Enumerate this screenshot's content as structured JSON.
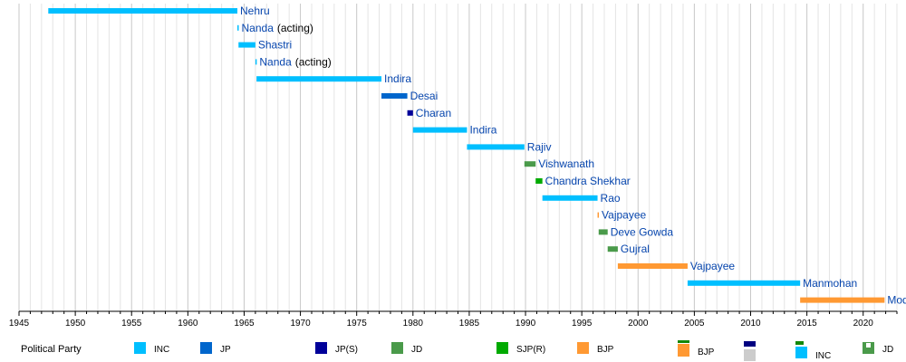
{
  "chart_data": {
    "type": "timeline",
    "title": "",
    "xlabel": "",
    "ylabel": "",
    "xlim": [
      1945,
      2023
    ],
    "x_ticks": [
      1945,
      1950,
      1955,
      1960,
      1965,
      1970,
      1975,
      1980,
      1985,
      1990,
      1995,
      2000,
      2005,
      2010,
      2015,
      2020
    ],
    "minor_grid_step": 1,
    "grid": true,
    "bars": [
      {
        "name": "Nehru",
        "note": "",
        "start": 1947.6,
        "end": 1964.4,
        "party": "INC"
      },
      {
        "name": "Nanda",
        "note": "(acting)",
        "start": 1964.4,
        "end": 1964.5,
        "party": "INC"
      },
      {
        "name": "Shastri",
        "note": "",
        "start": 1964.5,
        "end": 1966.0,
        "party": "INC"
      },
      {
        "name": "Nanda",
        "note": "(acting)",
        "start": 1966.0,
        "end": 1966.1,
        "party": "INC"
      },
      {
        "name": "Indira",
        "note": "",
        "start": 1966.1,
        "end": 1977.2,
        "party": "INC"
      },
      {
        "name": "Desai",
        "note": "",
        "start": 1977.2,
        "end": 1979.5,
        "party": "JP"
      },
      {
        "name": "Charan",
        "note": "",
        "start": 1979.5,
        "end": 1980.0,
        "party": "JP(S)"
      },
      {
        "name": "Indira",
        "note": "",
        "start": 1980.0,
        "end": 1984.8,
        "party": "INC"
      },
      {
        "name": "Rajiv",
        "note": "",
        "start": 1984.8,
        "end": 1989.9,
        "party": "INC"
      },
      {
        "name": "Vishwanath",
        "note": "",
        "start": 1989.9,
        "end": 1990.9,
        "party": "JD"
      },
      {
        "name": "Chandra Shekhar",
        "note": "",
        "start": 1990.9,
        "end": 1991.5,
        "party": "SJP(R)"
      },
      {
        "name": "Rao",
        "note": "",
        "start": 1991.5,
        "end": 1996.4,
        "party": "INC"
      },
      {
        "name": "Vajpayee",
        "note": "",
        "start": 1996.4,
        "end": 1996.5,
        "party": "BJP"
      },
      {
        "name": "Deve Gowda",
        "note": "",
        "start": 1996.5,
        "end": 1997.3,
        "party": "JD"
      },
      {
        "name": "Gujral",
        "note": "",
        "start": 1997.3,
        "end": 1998.2,
        "party": "JD"
      },
      {
        "name": "Vajpayee",
        "note": "",
        "start": 1998.2,
        "end": 2004.4,
        "party": "BJP"
      },
      {
        "name": "Manmohan",
        "note": "",
        "start": 2004.4,
        "end": 2014.4,
        "party": "INC"
      },
      {
        "name": "Modi",
        "note": "",
        "start": 2014.4,
        "end": 2021.9,
        "party": "BJP"
      }
    ],
    "legend": {
      "title": "Political Party",
      "items": [
        {
          "party": "INC",
          "color": "#00bfff"
        },
        {
          "party": "JP",
          "color": "#0066cc"
        },
        {
          "party": "JP(S)",
          "color": "#000099"
        },
        {
          "party": "JD",
          "color": "#4a9a4a"
        },
        {
          "party": "SJP(R)",
          "color": "#00aa00"
        },
        {
          "party": "BJP",
          "color": "#ff9933"
        }
      ]
    },
    "party_colors": {
      "INC": "#00bfff",
      "JP": "#0066cc",
      "JP(S)": "#000099",
      "JD": "#4a9a4a",
      "SJP(R)": "#00aa00",
      "BJP": "#ff9933"
    },
    "overlay_icons": [
      {
        "label": "BJP",
        "color": "#ff9933",
        "accent": "#138808",
        "position": "bottom-right"
      },
      {
        "label": "",
        "color": "#cccccc",
        "accent": "#000080",
        "position": "bottom-right"
      },
      {
        "label": "INC",
        "color": "#00bfff",
        "accent": "#138808",
        "position": "bottom-right"
      },
      {
        "label": "JD",
        "color": "#4a9a4a",
        "accent": "#ffffff",
        "position": "bottom-right"
      }
    ]
  }
}
